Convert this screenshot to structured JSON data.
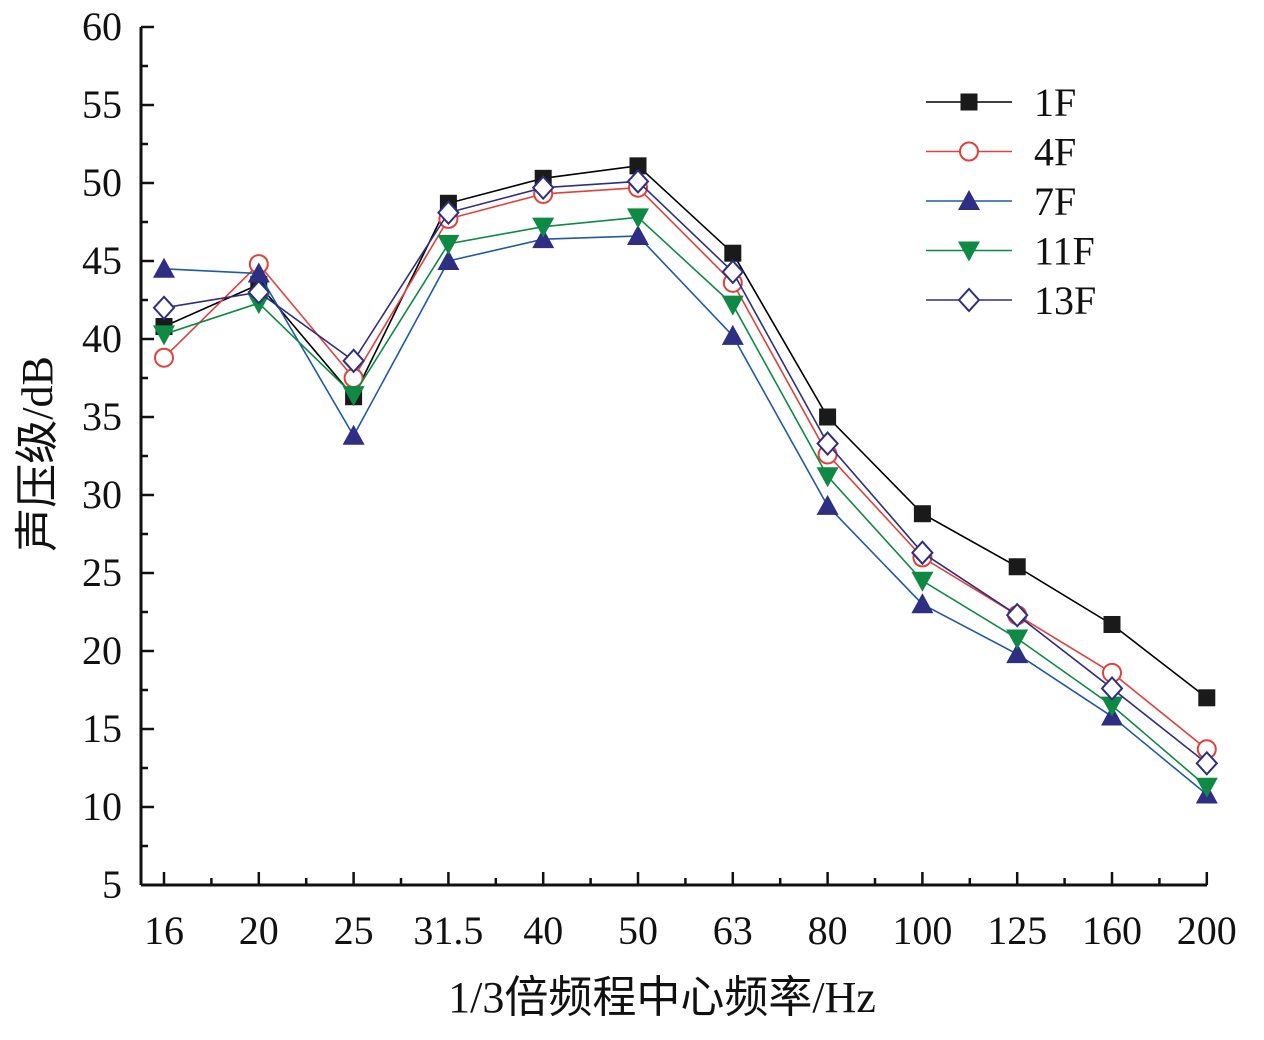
{
  "chart_data": {
    "type": "line",
    "title": "",
    "xlabel": "1/3倍频程中心频率/Hz",
    "ylabel": "声压级/dB",
    "categories": [
      "16",
      "20",
      "25",
      "31.5",
      "40",
      "50",
      "63",
      "80",
      "100",
      "125",
      "160",
      "200"
    ],
    "ylim": [
      5,
      60
    ],
    "yticks": [
      "5",
      "10",
      "15",
      "20",
      "25",
      "30",
      "35",
      "40",
      "45",
      "50",
      "55",
      "60"
    ],
    "grid": false,
    "legend_position": "top-right",
    "series": [
      {
        "name": "1F",
        "marker": "square-filled",
        "color": "#000000",
        "marker_color": "#1a1a1a",
        "values": [
          40.8,
          43.5,
          36.3,
          48.7,
          50.3,
          51.1,
          45.5,
          35.0,
          28.8,
          25.4,
          21.7,
          17.0
        ]
      },
      {
        "name": "4F",
        "marker": "circle-open",
        "color": "#e0413a",
        "marker_color": "#e0413a",
        "values": [
          38.8,
          44.8,
          37.5,
          47.7,
          49.3,
          49.7,
          43.6,
          32.6,
          26.0,
          22.3,
          18.6,
          13.7
        ]
      },
      {
        "name": "7F",
        "marker": "triangle-up",
        "color": "#1f5aa6",
        "marker_color": "#2e2e82",
        "values": [
          44.5,
          44.2,
          33.8,
          45.0,
          46.4,
          46.6,
          40.2,
          29.3,
          23.0,
          19.8,
          15.8,
          10.8
        ]
      },
      {
        "name": "11F",
        "marker": "triangle-down",
        "color": "#0e8a45",
        "marker_color": "#0e8a45",
        "values": [
          40.3,
          42.3,
          36.4,
          46.1,
          47.2,
          47.8,
          42.2,
          31.2,
          24.5,
          20.8,
          16.5,
          11.3
        ]
      },
      {
        "name": "13F",
        "marker": "diamond-open",
        "color": "#2e2e82",
        "marker_color": "#2e2e82",
        "values": [
          42.0,
          43.0,
          38.6,
          48.1,
          49.7,
          50.1,
          44.3,
          33.3,
          26.3,
          22.3,
          17.6,
          12.8
        ]
      }
    ]
  }
}
